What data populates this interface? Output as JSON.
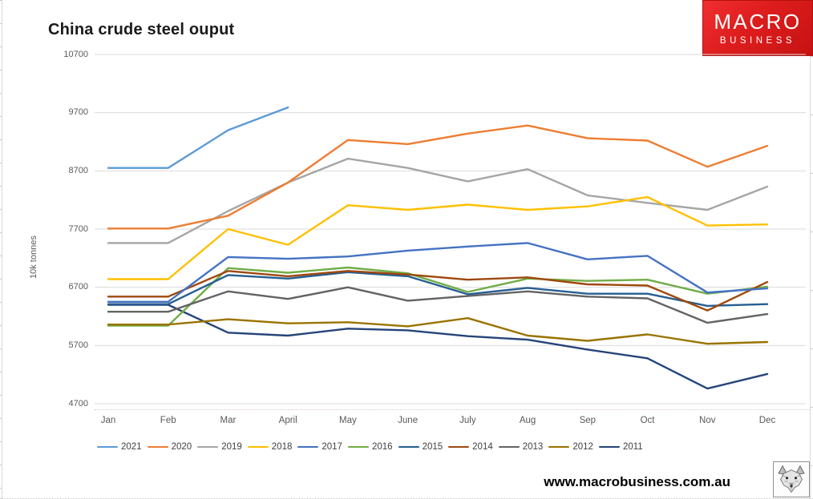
{
  "brand": {
    "logo_line1": "MACRO",
    "logo_line2": "BUSINESS",
    "bg_color": "#DD1D1D",
    "text_color": "#FFFFFF"
  },
  "footer": {
    "url": "www.macrobusiness.com.au",
    "logo_icon": "wolf-logo-icon"
  },
  "chart_data": {
    "type": "line",
    "title": "China crude steel ouput",
    "xlabel": "",
    "ylabel": "10k tonnes",
    "ylim": [
      4700,
      10700
    ],
    "yticks": [
      10700,
      9700,
      8700,
      7700,
      6700,
      5700,
      4700
    ],
    "grid": true,
    "gridline_color": "#DBDBDB",
    "axis_label_color": "#595959",
    "legend_position": "bottom",
    "categories": [
      "Jan",
      "Feb",
      "Mar",
      "April",
      "May",
      "June",
      "July",
      "Aug",
      "Sep",
      "Oct",
      "Nov",
      "Dec"
    ],
    "series": [
      {
        "name": "2021",
        "color": "#5B9BD5",
        "values": [
          8750,
          8750,
          9400,
          9790,
          null,
          null,
          null,
          null,
          null,
          null,
          null,
          null
        ]
      },
      {
        "name": "2020",
        "color": "#ED7D31",
        "values": [
          7710,
          7710,
          7930,
          8500,
          9230,
          9160,
          9340,
          9480,
          9260,
          9220,
          8770,
          9130
        ]
      },
      {
        "name": "2019",
        "color": "#A5A5A5",
        "values": [
          7460,
          7460,
          8010,
          8500,
          8910,
          8750,
          8520,
          8730,
          8280,
          8150,
          8030,
          8430
        ]
      },
      {
        "name": "2018",
        "color": "#FFC000",
        "values": [
          6840,
          6840,
          7700,
          7430,
          8110,
          8030,
          8120,
          8030,
          8090,
          8250,
          7760,
          7780
        ]
      },
      {
        "name": "2017",
        "color": "#4472C4",
        "values": [
          6450,
          6450,
          7220,
          7190,
          7230,
          7330,
          7400,
          7460,
          7180,
          7240,
          6610,
          6680
        ]
      },
      {
        "name": "2016",
        "color": "#70AD47",
        "values": [
          6040,
          6040,
          7030,
          6950,
          7040,
          6940,
          6620,
          6850,
          6810,
          6830,
          6590,
          6710
        ]
      },
      {
        "name": "2015",
        "color": "#255E91",
        "values": [
          6410,
          6410,
          6910,
          6850,
          6960,
          6890,
          6580,
          6690,
          6590,
          6590,
          6380,
          6410
        ]
      },
      {
        "name": "2014",
        "color": "#9E480E",
        "values": [
          6540,
          6540,
          6980,
          6890,
          6980,
          6920,
          6830,
          6870,
          6750,
          6730,
          6300,
          6790
        ]
      },
      {
        "name": "2013",
        "color": "#636363",
        "values": [
          6280,
          6280,
          6630,
          6500,
          6700,
          6470,
          6550,
          6630,
          6540,
          6510,
          6090,
          6240
        ]
      },
      {
        "name": "2012",
        "color": "#997300",
        "values": [
          6060,
          6060,
          6150,
          6080,
          6100,
          6030,
          6170,
          5870,
          5780,
          5890,
          5730,
          5760
        ]
      },
      {
        "name": "2011",
        "color": "#264478",
        "values": [
          6400,
          6400,
          5920,
          5870,
          5990,
          5960,
          5860,
          5800,
          5630,
          5480,
          4960,
          5210
        ]
      }
    ]
  }
}
